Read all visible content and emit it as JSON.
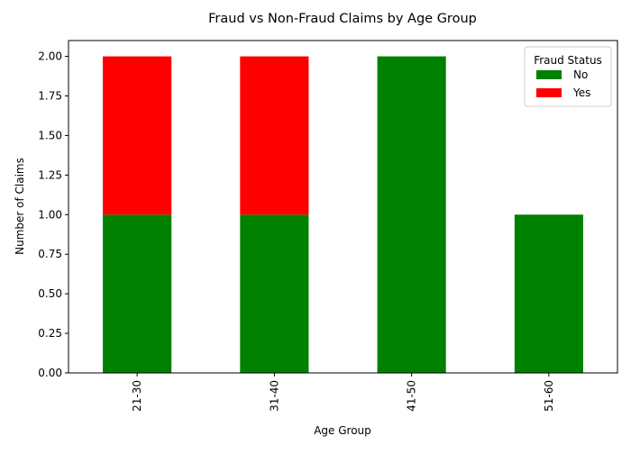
{
  "chart_data": {
    "type": "bar",
    "stacked": true,
    "title": "Fraud vs Non-Fraud Claims by Age Group",
    "xlabel": "Age Group",
    "ylabel": "Number of Claims",
    "categories": [
      "21-30",
      "31-40",
      "41-50",
      "51-60"
    ],
    "series": [
      {
        "name": "No",
        "color": "#008000",
        "values": [
          1,
          1,
          2,
          1
        ]
      },
      {
        "name": "Yes",
        "color": "#ff0000",
        "values": [
          1,
          1,
          0,
          0
        ]
      }
    ],
    "ylim": [
      0,
      2.1
    ],
    "yticks": [
      "0.00",
      "0.25",
      "0.50",
      "0.75",
      "1.00",
      "1.25",
      "1.50",
      "1.75",
      "2.00"
    ],
    "grid": false,
    "legend": {
      "title": "Fraud Status",
      "placement": "top-right"
    }
  }
}
